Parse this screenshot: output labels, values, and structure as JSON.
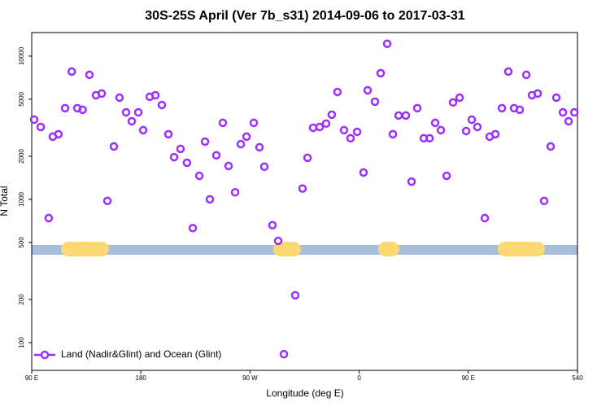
{
  "chart_data": {
    "type": "scatter",
    "title": "30S-25S April (Ver 7b_s31)   2014-09-06 to 2017-03-31",
    "xlabel": "Longitude (deg E)",
    "ylabel": "N Total",
    "x": [
      92,
      97.4,
      104,
      107.4,
      112,
      117.5,
      123,
      127.6,
      132,
      137.6,
      143,
      147.7,
      152.4,
      157.7,
      162.4,
      167.8,
      172.5,
      177.9,
      181.9,
      187.3,
      192,
      197.3,
      202.7,
      207.4,
      212.7,
      218,
      222.8,
      228.2,
      232.9,
      236.9,
      242.2,
      247.6,
      252.3,
      257.7,
      262.4,
      267.1,
      273.1,
      277.8,
      281.8,
      288.5,
      293.2,
      297.9,
      307.3,
      313.3,
      317.4,
      322,
      327.4,
      332.7,
      337.4,
      342.1,
      347.5,
      352.9,
      358.3,
      363.6,
      367,
      373,
      377.7,
      383.1,
      387.8,
      392.5,
      398.5,
      403.2,
      407.9,
      413.3,
      418,
      422.7,
      427.4,
      432.1,
      437.4,
      442.8,
      448.2,
      452.8,
      457.5,
      463.6,
      467.6,
      472.3,
      477.7,
      483,
      487.7,
      492.4,
      497.8,
      502.5,
      507.2,
      512.5,
      517.9,
      522.6,
      528,
      532.7,
      537.4
    ],
    "series": [
      {
        "name": "Land (Nadir&Glint) and Ocean (Glint)",
        "color": "#9b30ff",
        "values": [
          3600,
          3200,
          740,
          2740,
          2850,
          4330,
          7800,
          4330,
          4220,
          7400,
          5330,
          5480,
          975,
          2340,
          5130,
          4050,
          3510,
          4050,
          3040,
          5200,
          5330,
          4560,
          2850,
          1970,
          2250,
          1800,
          630,
          1460,
          2530,
          1000,
          2030,
          3420,
          1710,
          1120,
          2430,
          2740,
          3420,
          2310,
          1690,
          660,
          513,
          83,
          214,
          1190,
          1950,
          3160,
          3200,
          3380,
          3900,
          5620,
          3040,
          2670,
          2960,
          1540,
          5770,
          4810,
          7600,
          12200,
          2850,
          3850,
          3850,
          1330,
          4330,
          2670,
          2670,
          3420,
          3040,
          1460,
          4750,
          5130,
          3000,
          3600,
          3200,
          740,
          2740,
          2850,
          4330,
          7800,
          4330,
          4220,
          7400,
          5330,
          5480,
          975,
          2340,
          5130,
          4050,
          3510,
          4050
        ]
      }
    ],
    "xlim": [
      90,
      540
    ],
    "xticks": [
      {
        "value": 90,
        "label": "90 E"
      },
      180,
      {
        "value": 270,
        "label": "90 W"
      },
      {
        "value": 360,
        "label": "0"
      },
      {
        "value": 450,
        "label": "90 E"
      },
      540
    ],
    "ylim": [
      64,
      14600
    ],
    "yticks": [
      100,
      200,
      500,
      1000,
      2000,
      5000,
      10000
    ],
    "log_y": true,
    "legend": "lower left"
  }
}
